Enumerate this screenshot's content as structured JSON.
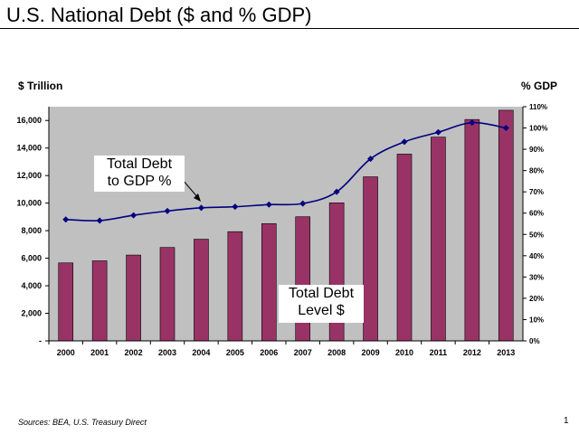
{
  "slide": {
    "title": "U.S. National Debt ($ and % GDP)",
    "sources": "Sources:  BEA, U.S. Treasury Direct",
    "page_number": "1"
  },
  "chart_data": {
    "type": "bar",
    "title": "",
    "left_axis_label": "$ Trillion",
    "right_axis_label": "% GDP",
    "categories": [
      "2000",
      "2001",
      "2002",
      "2003",
      "2004",
      "2005",
      "2006",
      "2007",
      "2008",
      "2009",
      "2010",
      "2011",
      "2012",
      "2013"
    ],
    "series": [
      {
        "type": "bar",
        "axis": "left",
        "values": [
          5660,
          5810,
          6230,
          6780,
          7380,
          7930,
          8510,
          9010,
          10020,
          11910,
          13560,
          14790,
          16070,
          16740
        ]
      },
      {
        "type": "line",
        "axis": "right",
        "values": [
          57,
          56.5,
          59,
          61,
          62.5,
          63,
          64,
          64.5,
          70,
          85.5,
          93.5,
          98,
          102.5,
          100
        ]
      }
    ],
    "left_ticks": [
      "-",
      "2,000",
      "4,000",
      "6,000",
      "8,000",
      "10,000",
      "12,000",
      "14,000",
      "16,000"
    ],
    "left_ylim": [
      0,
      17000
    ],
    "right_ticks": [
      "0%",
      "10%",
      "20%",
      "30%",
      "40%",
      "50%",
      "60%",
      "70%",
      "80%",
      "90%",
      "100%",
      "110%"
    ],
    "right_ylim": [
      0,
      110
    ],
    "annotations": {
      "gdp_line_1": "Total Debt",
      "gdp_line_2": "to GDP %",
      "level_line_1": "Total Debt",
      "level_line_2": "Level $"
    },
    "grid": false,
    "legend": "none",
    "colors": {
      "plot_background": "#c0c0c0",
      "bar_fill": "#993366",
      "line": "#000080",
      "marker": "#000080"
    }
  }
}
